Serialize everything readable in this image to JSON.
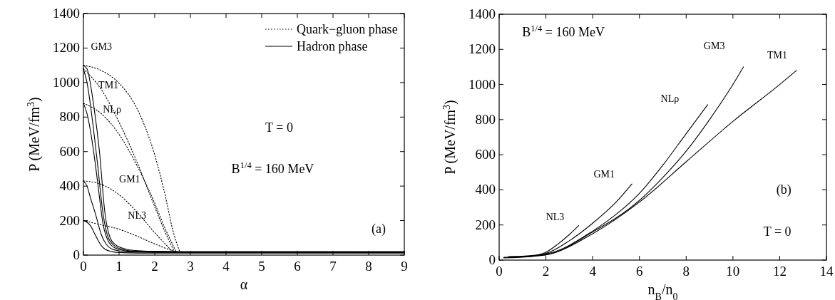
{
  "chart_data": [
    {
      "type": "line",
      "xlabel": "α",
      "ylabel": "P (MeV/fm$^{3}$)",
      "xlim": [
        0,
        9
      ],
      "ylim": [
        0,
        1400
      ],
      "xticks": [
        0,
        1,
        2,
        3,
        4,
        5,
        6,
        7,
        8,
        9
      ],
      "yticks": [
        0,
        200,
        400,
        600,
        800,
        1000,
        1200,
        1400
      ],
      "grid": false,
      "legend": "top right",
      "marker": "none",
      "annotations": [
        "T = 0",
        "B$^{1/4}$ = 160 MeV",
        "(a)",
        "GM3",
        "TM1",
        "NLρ",
        "GM1",
        "NL3"
      ],
      "series": [
        {
          "name": "Quark−gluon phase",
          "color": "#000000",
          "line_style": "dotted",
          "x": [
            0,
            0.5,
            1,
            1.5,
            2,
            2.3,
            2.5,
            2.7
          ],
          "values": [
            1100,
            1070,
            996,
            850,
            580,
            340,
            150,
            20
          ]
        },
        {
          "color": "#000000",
          "line_style": "dotted",
          "x": [
            0,
            0.5,
            1,
            1.5,
            2,
            2.3,
            2.55
          ],
          "values": [
            1080,
            960,
            770,
            540,
            280,
            130,
            20
          ]
        },
        {
          "color": "#000000",
          "line_style": "dotted",
          "x": [
            0,
            0.5,
            1,
            1.5,
            2,
            2.3,
            2.6
          ],
          "values": [
            880,
            820,
            700,
            520,
            300,
            150,
            20
          ]
        },
        {
          "color": "#000000",
          "line_style": "dotted",
          "x": [
            0,
            0.5,
            1,
            1.5,
            2,
            2.5
          ],
          "values": [
            430,
            410,
            350,
            250,
            130,
            20
          ]
        },
        {
          "color": "#000000",
          "line_style": "dotted",
          "x": [
            0,
            0.5,
            1,
            1.5,
            2,
            2.3,
            2.6
          ],
          "values": [
            200,
            175,
            150,
            110,
            65,
            40,
            20
          ]
        },
        {
          "name": "Hadron phase",
          "color": "#000000",
          "line_style": "solid",
          "x": [
            0,
            0.1,
            0.3,
            0.45,
            0.6,
            0.75,
            0.9,
            1.1,
            1.3,
            2,
            3,
            9
          ],
          "values": [
            1100,
            1080,
            850,
            600,
            250,
            100,
            60,
            40,
            30,
            22,
            20,
            20
          ]
        },
        {
          "color": "#000000",
          "line_style": "solid",
          "x": [
            0,
            0.1,
            0.3,
            0.4,
            0.55,
            0.7,
            0.9,
            1.1,
            1.3,
            2,
            3,
            9
          ],
          "values": [
            1080,
            1000,
            700,
            520,
            240,
            100,
            50,
            33,
            25,
            20,
            18,
            18
          ]
        },
        {
          "color": "#000000",
          "line_style": "solid",
          "x": [
            0,
            0.1,
            0.3,
            0.4,
            0.55,
            0.7,
            0.9,
            1.1,
            1.3,
            2,
            3,
            9
          ],
          "values": [
            880,
            820,
            580,
            420,
            180,
            80,
            40,
            28,
            22,
            18,
            17,
            17
          ]
        },
        {
          "color": "#000000",
          "line_style": "solid",
          "x": [
            0,
            0.1,
            0.2,
            0.35,
            0.5,
            0.65,
            0.8,
            1,
            1.3,
            2,
            9
          ],
          "values": [
            430,
            400,
            330,
            230,
            120,
            60,
            35,
            25,
            18,
            16,
            15
          ]
        },
        {
          "color": "#000000",
          "line_style": "solid",
          "x": [
            0,
            0.1,
            0.2,
            0.3,
            0.4,
            0.5,
            0.6,
            0.8,
            1,
            1.5,
            9
          ],
          "values": [
            200,
            190,
            170,
            130,
            90,
            55,
            35,
            20,
            15,
            12,
            12
          ]
        }
      ]
    },
    {
      "type": "line",
      "xlabel": "n$_{B}$/n$_{0}$",
      "ylabel": "P (MeV/fm$^{3}$)",
      "xlim": [
        0,
        14
      ],
      "ylim": [
        0,
        1400
      ],
      "xticks": [
        0,
        2,
        4,
        6,
        8,
        10,
        12,
        14
      ],
      "yticks": [
        0,
        200,
        400,
        600,
        800,
        1000,
        1200,
        1400
      ],
      "grid": false,
      "legend": false,
      "marker": "none",
      "annotations": [
        "B$^{1/4}$ = 160 MeV",
        "(b)",
        "T = 0"
      ],
      "series": [
        {
          "name": "NL3",
          "color": "#000000",
          "line_style": "solid",
          "x": [
            0.2,
            1,
            1.5,
            2,
            2.5,
            3,
            3.4
          ],
          "values": [
            15,
            18,
            25,
            45,
            90,
            145,
            196
          ]
        },
        {
          "name": "GM1",
          "color": "#000000",
          "line_style": "solid",
          "x": [
            0.4,
            1,
            2,
            3,
            4,
            5,
            5.68
          ],
          "values": [
            20,
            20,
            38,
            110,
            210,
            330,
            434
          ]
        },
        {
          "name": "NLρ",
          "color": "#000000",
          "line_style": "solid",
          "x": [
            0.4,
            2,
            4,
            5,
            6,
            7,
            8,
            8.92
          ],
          "values": [
            18,
            35,
            165,
            260,
            380,
            540,
            720,
            885
          ]
        },
        {
          "name": "GM3",
          "color": "#000000",
          "line_style": "solid",
          "x": [
            0.2,
            2,
            4,
            6,
            7,
            8,
            9,
            10,
            10.45
          ],
          "values": [
            15,
            30,
            160,
            340,
            470,
            620,
            800,
            1000,
            1100
          ]
        },
        {
          "name": "TM1",
          "color": "#000000",
          "line_style": "solid",
          "x": [
            0.2,
            2,
            4,
            6,
            8,
            10,
            12,
            12.72
          ],
          "values": [
            12,
            30,
            150,
            330,
            560,
            790,
            1000,
            1080
          ]
        }
      ]
    }
  ]
}
